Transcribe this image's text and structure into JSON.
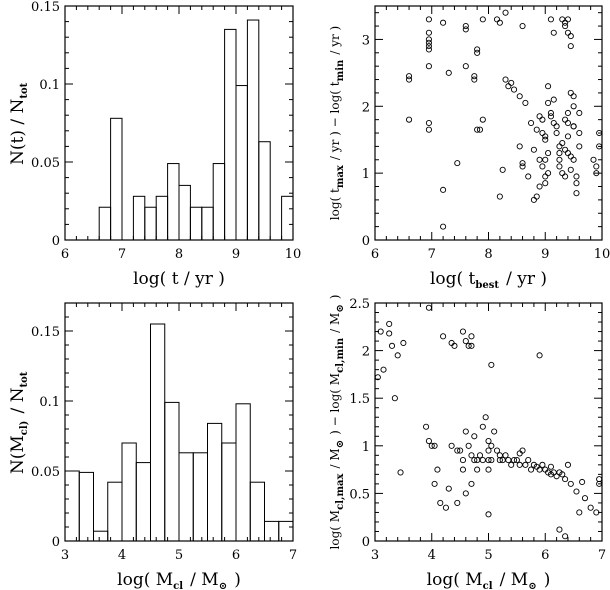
{
  "chart_data": [
    {
      "type": "bar",
      "panel": "top-left",
      "xlabel": "log( t / yr )",
      "ylabel": "N(t) / N_tot",
      "xlim": [
        6,
        10
      ],
      "ylim": [
        0,
        0.15
      ],
      "xticks": [
        "6",
        "7",
        "8",
        "9",
        "10"
      ],
      "yticks": [
        "0",
        "0.05",
        "0.1",
        "0.15"
      ],
      "bin_width": 0.2,
      "bin_start": 6.6,
      "values": [
        0.021,
        0.078,
        0,
        0.028,
        0.021,
        0.028,
        0.049,
        0.035,
        0.021,
        0.021,
        0.049,
        0.135,
        0.099,
        0.141,
        0.063,
        0,
        0.028
      ]
    },
    {
      "type": "scatter",
      "panel": "top-right",
      "xlabel": "log( t_best / yr )",
      "ylabel": "log( t_max / yr ) − log( t_min / yr )",
      "xlim": [
        6,
        10
      ],
      "ylim": [
        0,
        3.5
      ],
      "xticks": [
        "6",
        "7",
        "8",
        "9",
        "10"
      ],
      "yticks": [
        "0",
        "1",
        "2",
        "3"
      ],
      "points": [
        [
          6.6,
          2.45
        ],
        [
          6.6,
          2.4
        ],
        [
          6.6,
          1.8
        ],
        [
          6.95,
          3.3
        ],
        [
          6.95,
          3.1
        ],
        [
          6.95,
          3.0
        ],
        [
          6.95,
          2.95
        ],
        [
          6.95,
          2.9
        ],
        [
          6.95,
          2.85
        ],
        [
          6.95,
          2.6
        ],
        [
          6.95,
          1.75
        ],
        [
          6.95,
          1.65
        ],
        [
          7.2,
          3.25
        ],
        [
          7.2,
          0.75
        ],
        [
          7.2,
          0.2
        ],
        [
          7.3,
          2.5
        ],
        [
          7.45,
          1.15
        ],
        [
          7.6,
          3.2
        ],
        [
          7.6,
          3.15
        ],
        [
          7.6,
          2.6
        ],
        [
          7.75,
          2.45
        ],
        [
          7.75,
          2.4
        ],
        [
          7.8,
          1.65
        ],
        [
          7.8,
          2.85
        ],
        [
          7.8,
          2.8
        ],
        [
          7.85,
          1.65
        ],
        [
          7.9,
          3.3
        ],
        [
          7.9,
          1.8
        ],
        [
          8.15,
          3.3
        ],
        [
          8.2,
          3.25
        ],
        [
          8.2,
          0.65
        ],
        [
          8.25,
          1.05
        ],
        [
          8.3,
          3.4
        ],
        [
          8.3,
          2.4
        ],
        [
          8.35,
          2.3
        ],
        [
          8.4,
          2.35
        ],
        [
          8.45,
          2.25
        ],
        [
          8.55,
          2.15
        ],
        [
          8.55,
          1.4
        ],
        [
          8.6,
          1.15
        ],
        [
          8.6,
          1.1
        ],
        [
          8.65,
          2.05
        ],
        [
          8.75,
          1.75
        ],
        [
          8.8,
          1.35
        ],
        [
          8.8,
          0.6
        ],
        [
          8.85,
          0.65
        ],
        [
          8.85,
          1.65
        ],
        [
          8.9,
          1.85
        ],
        [
          8.95,
          1.8
        ],
        [
          8.95,
          1.6
        ],
        [
          9.0,
          1.55
        ],
        [
          9.0,
          1.5
        ],
        [
          9.0,
          1.2
        ],
        [
          9.0,
          0.95
        ],
        [
          9.0,
          0.85
        ],
        [
          9.05,
          2.05
        ],
        [
          9.05,
          1.3
        ],
        [
          9.1,
          1.9
        ],
        [
          9.1,
          1.85
        ],
        [
          9.15,
          2.1
        ],
        [
          9.15,
          1.75
        ],
        [
          9.2,
          1.7
        ],
        [
          9.2,
          1.6
        ],
        [
          9.25,
          1.4
        ],
        [
          9.25,
          1.3
        ],
        [
          9.25,
          1.2
        ],
        [
          9.25,
          1.1
        ],
        [
          9.3,
          1.45
        ],
        [
          9.3,
          1.0
        ],
        [
          9.35,
          1.35
        ],
        [
          9.35,
          0.95
        ],
        [
          9.4,
          1.9
        ],
        [
          9.4,
          1.75
        ],
        [
          9.4,
          1.55
        ],
        [
          9.4,
          1.3
        ],
        [
          9.45,
          1.25
        ],
        [
          9.45,
          1.05
        ],
        [
          9.5,
          2.0
        ],
        [
          9.5,
          1.7
        ],
        [
          9.5,
          1.2
        ],
        [
          9.55,
          0.95
        ],
        [
          9.55,
          0.85
        ],
        [
          9.55,
          0.7
        ],
        [
          9.6,
          1.6
        ],
        [
          9.6,
          1.4
        ],
        [
          9.3,
          3.3
        ],
        [
          9.35,
          3.25
        ],
        [
          9.35,
          3.2
        ],
        [
          9.4,
          3.3
        ],
        [
          9.4,
          3.1
        ],
        [
          9.45,
          3.05
        ],
        [
          9.45,
          2.9
        ],
        [
          9.45,
          2.2
        ],
        [
          9.5,
          2.15
        ],
        [
          9.5,
          1.7
        ],
        [
          9.1,
          3.3
        ],
        [
          9.15,
          3.1
        ],
        [
          9.05,
          2.3
        ],
        [
          8.6,
          3.2
        ],
        [
          9.95,
          1.6
        ],
        [
          9.95,
          1.4
        ],
        [
          9.9,
          1.1
        ],
        [
          9.9,
          1.0
        ],
        [
          9.85,
          1.2
        ],
        [
          9.6,
          1.9
        ],
        [
          9.35,
          1.8
        ],
        [
          8.9,
          1.2
        ],
        [
          8.95,
          1.1
        ],
        [
          8.7,
          0.95
        ],
        [
          8.9,
          0.8
        ],
        [
          9.05,
          1.0
        ]
      ]
    },
    {
      "type": "bar",
      "panel": "bottom-left",
      "xlabel": "log( M_cl / M_⊙ )",
      "ylabel": "N(M_cl) / N_tot",
      "xlim": [
        3,
        7
      ],
      "ylim": [
        0,
        0.17
      ],
      "xticks": [
        "3",
        "4",
        "5",
        "6",
        "7"
      ],
      "yticks": [
        "0",
        "0.05",
        "0.1",
        "0.15"
      ],
      "bin_width": 0.25,
      "bin_start": 3.0,
      "values": [
        0.05,
        0.049,
        0.007,
        0.042,
        0.07,
        0.056,
        0.155,
        0.099,
        0.063,
        0.063,
        0.084,
        0.07,
        0.098,
        0.042,
        0.014,
        0.014
      ]
    },
    {
      "type": "scatter",
      "panel": "bottom-right",
      "xlabel": "log( M_cl / M_⊙ )",
      "ylabel": "log( M_cl,max / M_⊙ ) − log( M_cl,min / M_⊙ )",
      "xlim": [
        3,
        7
      ],
      "ylim": [
        0,
        2.5
      ],
      "xticks": [
        "3",
        "4",
        "5",
        "6",
        "7"
      ],
      "yticks": [
        "0",
        "0.5",
        "1",
        "1.5",
        "2",
        "2.5"
      ],
      "points": [
        [
          3.05,
          1.72
        ],
        [
          3.1,
          2.2
        ],
        [
          3.15,
          1.8
        ],
        [
          3.25,
          2.28
        ],
        [
          3.25,
          2.18
        ],
        [
          3.3,
          2.05
        ],
        [
          3.35,
          1.5
        ],
        [
          3.4,
          1.95
        ],
        [
          3.45,
          0.72
        ],
        [
          3.5,
          2.08
        ],
        [
          3.9,
          1.2
        ],
        [
          3.95,
          2.45
        ],
        [
          4.0,
          1.0
        ],
        [
          4.05,
          1.0
        ],
        [
          4.05,
          0.6
        ],
        [
          4.1,
          0.75
        ],
        [
          4.15,
          0.4
        ],
        [
          4.2,
          2.15
        ],
        [
          4.25,
          0.35
        ],
        [
          4.3,
          0.55
        ],
        [
          4.35,
          2.08
        ],
        [
          4.4,
          2.05
        ],
        [
          4.45,
          0.4
        ],
        [
          4.5,
          0.95
        ],
        [
          4.55,
          0.85
        ],
        [
          4.55,
          0.75
        ],
        [
          4.55,
          2.2
        ],
        [
          4.6,
          2.1
        ],
        [
          4.6,
          0.5
        ],
        [
          4.65,
          2.05
        ],
        [
          4.65,
          1.0
        ],
        [
          4.7,
          2.15
        ],
        [
          4.7,
          2.05
        ],
        [
          4.7,
          0.9
        ],
        [
          4.7,
          0.6
        ],
        [
          4.75,
          0.85
        ],
        [
          4.75,
          1.1
        ],
        [
          4.8,
          0.85
        ],
        [
          4.85,
          0.9
        ],
        [
          4.9,
          1.2
        ],
        [
          4.9,
          0.85
        ],
        [
          4.95,
          1.3
        ],
        [
          5.0,
          1.05
        ],
        [
          5.0,
          0.95
        ],
        [
          5.0,
          0.85
        ],
        [
          5.0,
          0.28
        ],
        [
          5.05,
          1.85
        ],
        [
          5.05,
          1.0
        ],
        [
          5.05,
          0.85
        ],
        [
          5.1,
          1.15
        ],
        [
          5.15,
          0.95
        ],
        [
          5.2,
          0.9
        ],
        [
          5.25,
          0.85
        ],
        [
          5.3,
          0.9
        ],
        [
          5.35,
          0.85
        ],
        [
          5.4,
          0.8
        ],
        [
          5.45,
          0.85
        ],
        [
          5.5,
          0.85
        ],
        [
          5.55,
          0.8
        ],
        [
          5.6,
          0.95
        ],
        [
          5.65,
          0.8
        ],
        [
          5.7,
          0.85
        ],
        [
          5.75,
          0.75
        ],
        [
          5.8,
          0.8
        ],
        [
          5.85,
          0.78
        ],
        [
          5.9,
          1.95
        ],
        [
          5.9,
          0.75
        ],
        [
          5.95,
          0.8
        ],
        [
          6.0,
          0.75
        ],
        [
          6.05,
          0.72
        ],
        [
          6.1,
          0.78
        ],
        [
          6.1,
          0.7
        ],
        [
          6.15,
          0.72
        ],
        [
          6.2,
          0.68
        ],
        [
          6.25,
          0.72
        ],
        [
          6.25,
          0.12
        ],
        [
          6.3,
          0.7
        ],
        [
          6.35,
          0.65
        ],
        [
          6.4,
          0.8
        ],
        [
          6.45,
          0.6
        ],
        [
          6.55,
          0.52
        ],
        [
          6.6,
          0.3
        ],
        [
          6.65,
          0.62
        ],
        [
          6.7,
          0.45
        ],
        [
          6.8,
          0.35
        ],
        [
          6.9,
          0.3
        ],
        [
          6.95,
          0.6
        ],
        [
          6.95,
          0.65
        ],
        [
          6.35,
          0.05
        ],
        [
          5.55,
          0.92
        ],
        [
          5.2,
          0.85
        ],
        [
          4.45,
          0.95
        ],
        [
          4.6,
          1.15
        ],
        [
          4.35,
          1.0
        ],
        [
          3.95,
          1.05
        ],
        [
          4.8,
          0.75
        ],
        [
          5.0,
          0.75
        ]
      ]
    }
  ]
}
